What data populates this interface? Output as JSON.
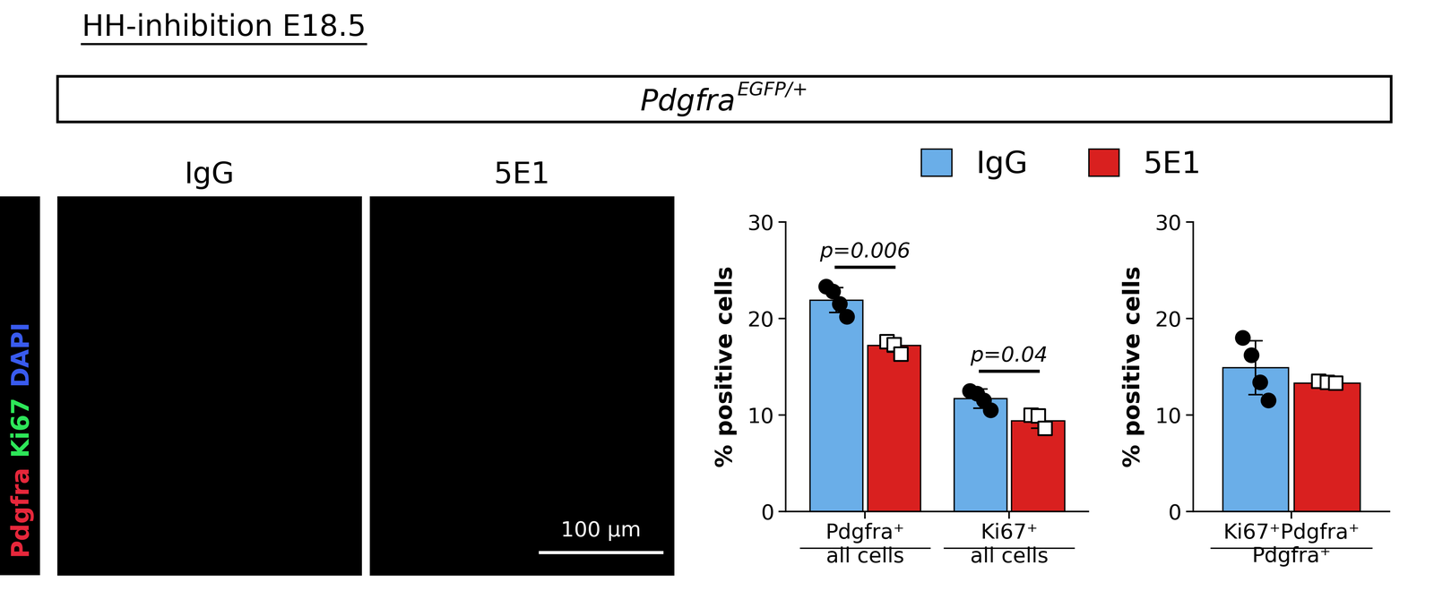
{
  "header": {
    "title": "HH-inhibition E18.5",
    "genotype": {
      "gene": "Pdgfra",
      "allele": "EGFP/+"
    }
  },
  "images": {
    "channels": [
      {
        "name": "Pdgfra",
        "color": "#e8283c"
      },
      {
        "name": "Ki67",
        "color": "#2ee85a"
      },
      {
        "name": "DAPI",
        "color": "#3a5cf0"
      }
    ],
    "panels": [
      "IgG",
      "5E1"
    ],
    "scale_bar": "100 μm"
  },
  "chart_data": [
    {
      "type": "bar",
      "ylabel": "% positive cells",
      "categories": [
        "Pdgfra⁺\nall cells",
        "Ki67⁺\nall cells"
      ],
      "ylim": [
        0,
        30
      ],
      "yticks": [
        0,
        10,
        20,
        30
      ],
      "legend": "upper center",
      "series": [
        {
          "name": "IgG",
          "color": "#6aaee8",
          "marker": "o",
          "values": [
            21.9,
            11.7
          ],
          "errors": [
            1.3,
            1.0
          ],
          "points": [
            [
              23.3,
              22.8,
              21.5,
              20.2
            ],
            [
              12.5,
              12.2,
              11.5,
              10.5
            ]
          ]
        },
        {
          "name": "5E1",
          "color": "#d9201f",
          "marker": "s",
          "values": [
            17.2,
            9.4
          ],
          "errors": [
            0.7,
            0.8
          ],
          "points": [
            [
              17.6,
              17.3,
              16.3
            ],
            [
              10.0,
              9.9,
              8.6
            ]
          ]
        }
      ],
      "annotations": [
        "p=0.006",
        "p=0.04"
      ]
    },
    {
      "type": "bar",
      "ylabel": "% positive cells",
      "categories": [
        "Ki67⁺Pdgfra⁺\nPdgfra⁺"
      ],
      "ylim": [
        0,
        30
      ],
      "yticks": [
        0,
        10,
        20,
        30
      ],
      "series": [
        {
          "name": "IgG",
          "color": "#6aaee8",
          "marker": "o",
          "values": [
            14.9
          ],
          "errors": [
            2.8
          ],
          "points": [
            [
              18.0,
              16.2,
              13.4,
              11.5
            ]
          ]
        },
        {
          "name": "5E1",
          "color": "#d9201f",
          "marker": "s",
          "values": [
            13.3
          ],
          "errors": [
            0.4
          ],
          "points": [
            [
              13.5,
              13.4,
              13.3
            ]
          ]
        }
      ]
    }
  ]
}
